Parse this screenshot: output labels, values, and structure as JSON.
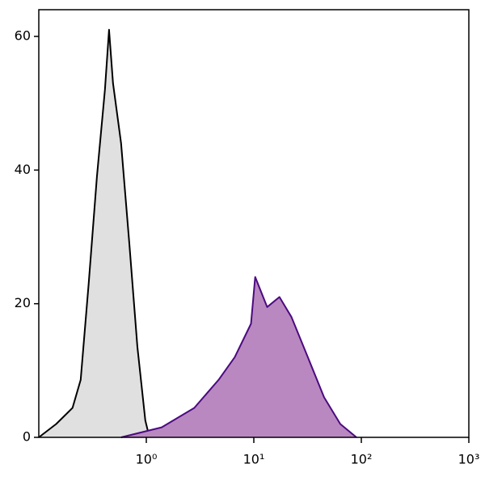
{
  "chart_data": {
    "type": "area",
    "xscale": "log",
    "xlim": [
      0.1,
      1000
    ],
    "ylim": [
      0,
      64
    ],
    "xticks": [
      {
        "value": 1,
        "label": "10⁰"
      },
      {
        "value": 10,
        "label": "10¹"
      },
      {
        "value": 100,
        "label": "10²"
      },
      {
        "value": 1000,
        "label": "10³"
      }
    ],
    "yticks": [
      0,
      20,
      40,
      60
    ],
    "series": [
      {
        "color": "#000000",
        "fill": "#e0e0e0",
        "x": [
          0.1,
          0.145,
          0.206,
          0.245,
          0.291,
          0.347,
          0.412,
          0.45,
          0.49,
          0.583,
          0.695,
          0.826,
          0.98,
          1.07
        ],
        "values": [
          0,
          2,
          4.4,
          8.6,
          23,
          39,
          52,
          61,
          53,
          44,
          29,
          13.5,
          2.5,
          0
        ]
      },
      {
        "color": "#4b0a7f",
        "fill": "#b988c0",
        "x": [
          0.583,
          1.39,
          2.79,
          4.7,
          6.65,
          9.41,
          10.3,
          13.3,
          17.3,
          22.4,
          31.8,
          45,
          63.7,
          90.2
        ],
        "values": [
          0,
          1.5,
          4.4,
          8.6,
          12,
          17,
          24,
          19.5,
          21,
          18,
          12,
          6,
          2,
          0
        ]
      }
    ]
  }
}
